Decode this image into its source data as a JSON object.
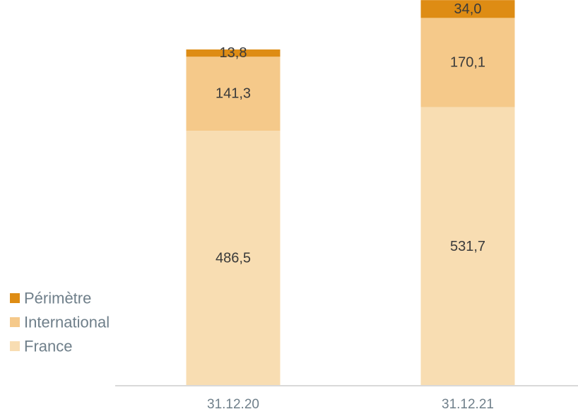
{
  "chart_data": {
    "type": "bar",
    "stacked": true,
    "categories": [
      "31.12.20",
      "31.12.21"
    ],
    "series": [
      {
        "name": "France",
        "values": [
          486.5,
          531.7
        ],
        "labels": [
          "486,5",
          "531,7"
        ],
        "color": "#f8ddb2"
      },
      {
        "name": "International",
        "values": [
          141.3,
          170.1
        ],
        "labels": [
          "141,3",
          "170,1"
        ],
        "color": "#f5c98a"
      },
      {
        "name": "Périmètre",
        "values": [
          13.8,
          34.0
        ],
        "labels": [
          "13,8",
          "34,0"
        ],
        "color": "#de8c14"
      }
    ],
    "legend_order": [
      "Périmètre",
      "International",
      "France"
    ],
    "legend_position": "left",
    "grid": false,
    "ylim": [
      0,
      736
    ],
    "axis_color": "#d9d9d9",
    "label_color": "#3a3a3a",
    "tick_color": "#6f7f8a"
  }
}
